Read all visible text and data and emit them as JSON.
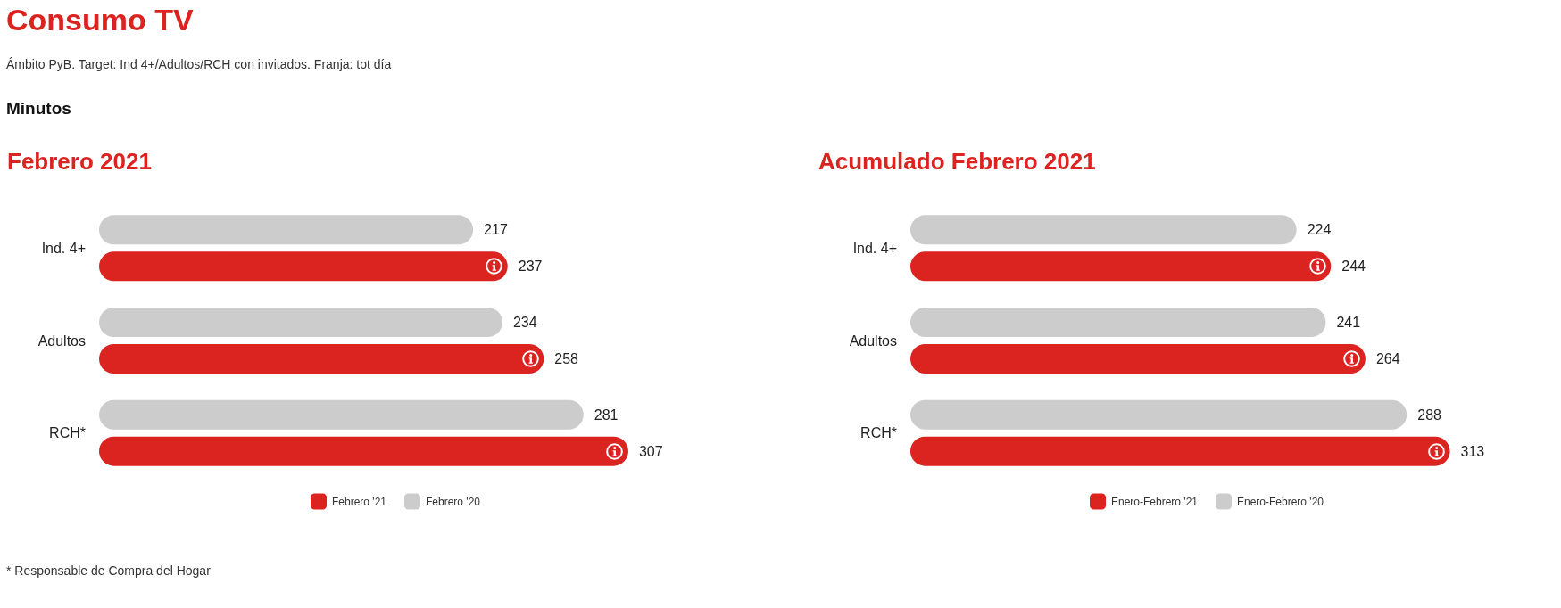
{
  "chart_data": [
    {
      "type": "other",
      "title": "Consumo TV",
      "subtitle": "Ámbito PyB. Target: Ind 4+/Adultos/RCH con invitados. Franja: tot día",
      "annotations": [
        "Minutos"
      ]
    },
    {
      "type": "bar",
      "orientation": "horizontal",
      "title": "Febrero 2021",
      "categories": [
        "Ind. 4+",
        "Adultos",
        "RCH*"
      ],
      "series": [
        {
          "name": "Febrero '21",
          "color": "#db2320",
          "values": [
            237,
            258,
            307
          ]
        },
        {
          "name": "Febrero '20",
          "color": "#cccccc",
          "values": [
            217,
            234,
            281
          ]
        }
      ],
      "data_labels": true,
      "legend": "bottom",
      "tick_labels": "y",
      "annotations": [
        "* Responsable de Compra del Hogar"
      ]
    },
    {
      "type": "bar",
      "orientation": "horizontal",
      "title": "Acumulado Febrero 2021",
      "categories": [
        "Ind. 4+",
        "Adultos",
        "RCH*"
      ],
      "series": [
        {
          "name": "Enero-Febrero '21",
          "color": "#db2320",
          "values": [
            244,
            264,
            313
          ]
        },
        {
          "name": "Enero-Febrero '20",
          "color": "#cccccc",
          "values": [
            224,
            241,
            288
          ]
        }
      ],
      "data_labels": true,
      "legend": "bottom",
      "tick_labels": "y"
    }
  ]
}
